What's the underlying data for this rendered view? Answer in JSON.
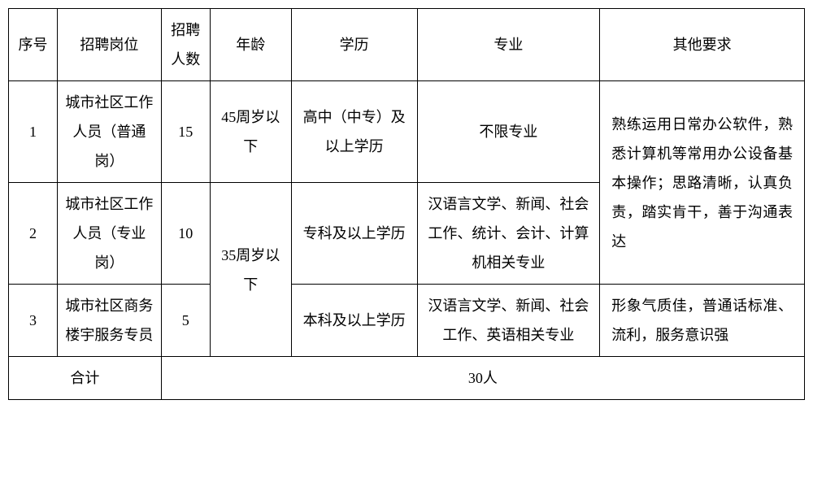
{
  "table": {
    "headers": {
      "seq": "序号",
      "position": "招聘岗位",
      "count": "招聘人数",
      "age": "年龄",
      "edu": "学历",
      "major": "专业",
      "other": "其他要求"
    },
    "rows": [
      {
        "seq": "1",
        "position": "城市社区工作人员（普通岗）",
        "count": "15",
        "age": "45周岁以下",
        "edu": "高中（中专）及以上学历",
        "major": "不限专业",
        "other_combined": "熟练运用日常办公软件，熟悉计算机等常用办公设备基本操作；思路清晰，认真负责，踏实肯干，善于沟通表达"
      },
      {
        "seq": "2",
        "position": "城市社区工作人员（专业岗）",
        "count": "10",
        "age_combined": "35周岁以下",
        "edu": "专科及以上学历",
        "major": "汉语言文学、新闻、社会工作、统计、会计、计算机相关专业"
      },
      {
        "seq": "3",
        "position": "城市社区商务楼宇服务专员",
        "count": "5",
        "edu": "本科及以上学历",
        "major": "汉语言文学、新闻、社会工作、英语相关专业",
        "other": "形象气质佳，普通话标准、流利，服务意识强"
      }
    ],
    "footer": {
      "label": "合计",
      "total": "30人"
    },
    "styling": {
      "border_color": "#000000",
      "background_color": "#ffffff",
      "text_color": "#000000",
      "font_size": 18,
      "line_height": 2.0,
      "font_family": "SimSun"
    }
  }
}
